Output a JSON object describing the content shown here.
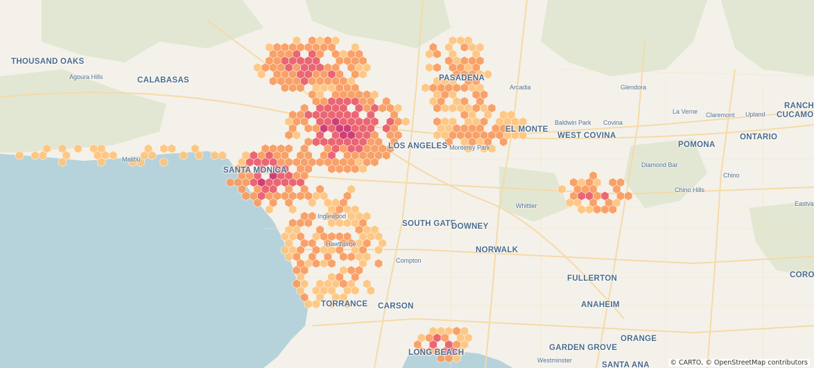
{
  "map": {
    "attribution": "© CARTO, © OpenStreetMap contributors",
    "colors": {
      "water": "#b6d3dc",
      "land": "#f4f1ea",
      "park": "#dfe6d0",
      "road": "#f6d9a4",
      "hex_low": "#fdc47e",
      "hex_mid": "#f79a5e",
      "hex_high": "#e85a6a",
      "hex_max": "#c8306f"
    },
    "labels": {
      "thousand_oaks": "THOUSAND OAKS",
      "agoura_hills": "Agoura Hills",
      "calabasas": "CALABASAS",
      "malibu": "Malibu",
      "santa_monica": "SANTA MONICA",
      "pasadena": "PASADENA",
      "arcadia": "Arcadia",
      "glendora": "Glendora",
      "baldwin_park": "Baldwin Park",
      "covina": "Covina",
      "el_monte": "EL MONTE",
      "west_covina": "WEST COVINA",
      "monterey_park": "Monterey Park",
      "los_angeles": "LOS ANGELES",
      "la_verne": "La Verne",
      "claremont": "Claremont",
      "upland": "Upland",
      "rancho": "RANCHO",
      "cucamonga": "CUCAMONGA",
      "pomona": "POMONA",
      "ontario": "ONTARIO",
      "diamond_bar": "Diamond Bar",
      "chino": "Chino",
      "chino_hills": "Chino Hills",
      "eastvale": "Eastvale",
      "whittier": "Whittier",
      "south_gate": "SOUTH GATE",
      "downey": "DOWNEY",
      "inglewood": "Inglewood",
      "hawthorne": "Hawthorne",
      "compton": "Compton",
      "norwalk": "NORWALK",
      "fullerton": "FULLERTON",
      "torrance": "TORRANCE",
      "carson": "CARSON",
      "anaheim": "ANAHEIM",
      "corona": "CORO",
      "orange": "ORANGE",
      "garden_grove": "GARDEN GROVE",
      "westminster": "Westminster",
      "santa_ana": "SANTA ANA",
      "long_beach": "LONG BEACH"
    },
    "hex_clusters": [
      {
        "name": "west-la-coast",
        "intensity": "max"
      },
      {
        "name": "central-la",
        "intensity": "max"
      },
      {
        "name": "san-fernando-valley",
        "intensity": "high"
      },
      {
        "name": "pasadena",
        "intensity": "mid"
      },
      {
        "name": "san-gabriel-valley",
        "intensity": "mid"
      },
      {
        "name": "south-bay",
        "intensity": "mid"
      },
      {
        "name": "long-beach",
        "intensity": "high"
      },
      {
        "name": "diamond-bar",
        "intensity": "high"
      },
      {
        "name": "malibu-coast",
        "intensity": "low"
      }
    ]
  }
}
